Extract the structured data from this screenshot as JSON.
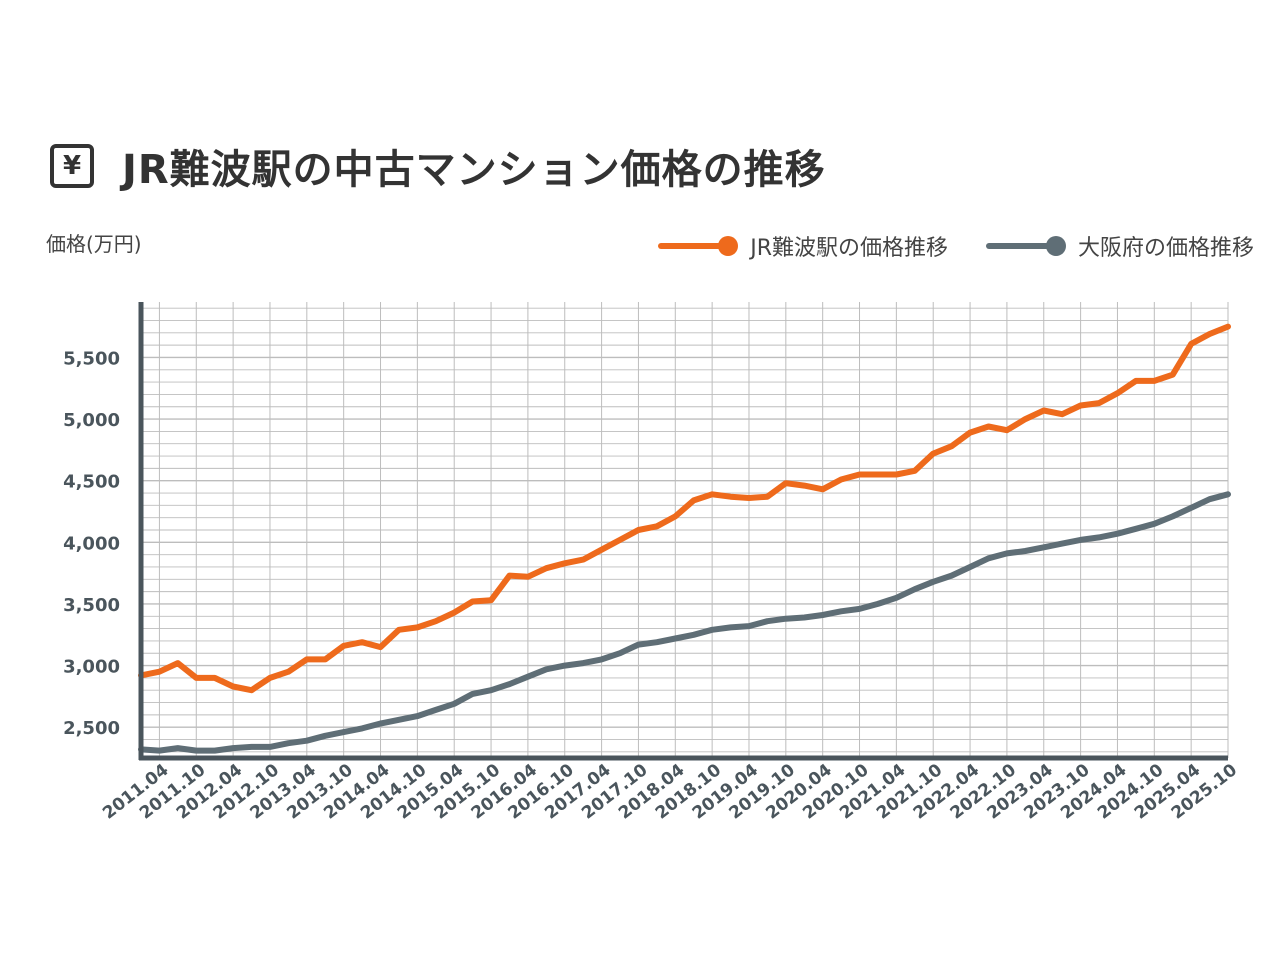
{
  "title": "JR難波駅の中古マンション価格の推移",
  "title_icon": "yen-icon",
  "y_unit_label": "価格(万円)",
  "colors": {
    "namba": "#ee6a1c",
    "osaka": "#5f6e76",
    "axis": "#4a555c",
    "grid": "#bdbdbd",
    "text": "#333333"
  },
  "chart_data": {
    "type": "line",
    "title": "JR難波駅の中古マンション価格の推移",
    "ylabel": "価格(万円)",
    "xlabel": "",
    "ylim": [
      2250,
      5950
    ],
    "yticks": [
      2500,
      3000,
      3500,
      4000,
      4500,
      5000,
      5500
    ],
    "ytick_labels": [
      "2,500",
      "3,000",
      "3,500",
      "4,000",
      "4,500",
      "5,000",
      "5,500"
    ],
    "grid": true,
    "legend_position": "top-right",
    "x": [
      "2011.01",
      "2011.04",
      "2011.07",
      "2011.10",
      "2012.01",
      "2012.04",
      "2012.07",
      "2012.10",
      "2013.01",
      "2013.04",
      "2013.07",
      "2013.10",
      "2014.01",
      "2014.04",
      "2014.07",
      "2014.10",
      "2015.01",
      "2015.04",
      "2015.07",
      "2015.10",
      "2016.01",
      "2016.04",
      "2016.07",
      "2016.10",
      "2017.01",
      "2017.04",
      "2017.07",
      "2017.10",
      "2018.01",
      "2018.04",
      "2018.07",
      "2018.10",
      "2019.01",
      "2019.04",
      "2019.07",
      "2019.10",
      "2020.01",
      "2020.04",
      "2020.07",
      "2020.10",
      "2021.01",
      "2021.04",
      "2021.07",
      "2021.10",
      "2022.01",
      "2022.04",
      "2022.07",
      "2022.10",
      "2023.01",
      "2023.04",
      "2023.07",
      "2023.10",
      "2024.01",
      "2024.04",
      "2024.07",
      "2024.10",
      "2025.01",
      "2025.04",
      "2025.07",
      "2025.10"
    ],
    "x_tick_labels": [
      "2011.04",
      "2011.10",
      "2012.04",
      "2012.10",
      "2013.04",
      "2013.10",
      "2014.04",
      "2014.10",
      "2015.04",
      "2015.10",
      "2016.04",
      "2016.10",
      "2017.04",
      "2017.10",
      "2018.04",
      "2018.10",
      "2019.04",
      "2019.10",
      "2020.04",
      "2020.10",
      "2021.04",
      "2021.10",
      "2022.04",
      "2022.10",
      "2023.04",
      "2023.10",
      "2024.04",
      "2024.10",
      "2025.04",
      "2025.10"
    ],
    "series": [
      {
        "name": "JR難波駅の価格推移",
        "color": "#ee6a1c",
        "values": [
          2920,
          2950,
          3020,
          2900,
          2900,
          2830,
          2800,
          2900,
          2950,
          3050,
          3050,
          3160,
          3190,
          3150,
          3290,
          3310,
          3360,
          3430,
          3520,
          3530,
          3730,
          3720,
          3790,
          3830,
          3860,
          3940,
          4020,
          4100,
          4130,
          4210,
          4340,
          4390,
          4370,
          4360,
          4370,
          4480,
          4460,
          4430,
          4510,
          4550,
          4550,
          4550,
          4580,
          4720,
          4780,
          4890,
          4940,
          4910,
          5000,
          5070,
          5040,
          5110,
          5130,
          5210,
          5310,
          5310,
          5360,
          5610,
          5690,
          5750
        ]
      },
      {
        "name": "大阪府の価格推移",
        "color": "#5f6e76",
        "values": [
          2320,
          2310,
          2330,
          2310,
          2310,
          2330,
          2340,
          2340,
          2370,
          2390,
          2430,
          2460,
          2490,
          2530,
          2560,
          2590,
          2640,
          2690,
          2770,
          2800,
          2850,
          2910,
          2970,
          3000,
          3020,
          3050,
          3100,
          3170,
          3190,
          3220,
          3250,
          3290,
          3310,
          3320,
          3360,
          3380,
          3390,
          3410,
          3440,
          3460,
          3500,
          3550,
          3620,
          3680,
          3730,
          3800,
          3870,
          3910,
          3930,
          3960,
          3990,
          4020,
          4040,
          4070,
          4110,
          4150,
          4210,
          4280,
          4350,
          4390
        ]
      }
    ]
  }
}
